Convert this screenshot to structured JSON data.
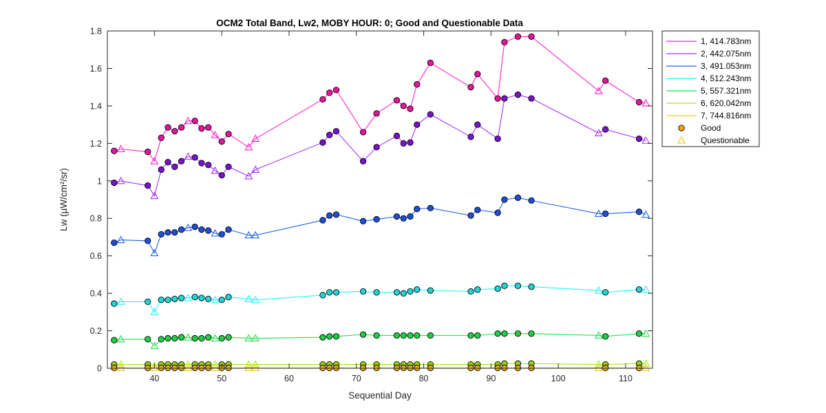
{
  "chart_data": {
    "type": "line",
    "title": "OCM2 Total Band,  Lw2, MOBY HOUR: 0;  Good and Questionable Data",
    "xlabel": "Sequential Day",
    "ylabel": "Lw (µW/cm²/sr)",
    "xlim": [
      33,
      114
    ],
    "ylim": [
      0,
      1.8
    ],
    "xticks": [
      40,
      50,
      60,
      70,
      80,
      90,
      100,
      110
    ],
    "yticks": [
      0,
      0.2,
      0.4,
      0.6,
      0.8,
      1,
      1.2,
      1.4,
      1.6,
      1.8
    ],
    "ytick_labels": [
      "0",
      "0.2",
      "0.4",
      "0.6",
      "0.8",
      "1",
      "1.2",
      "1.4",
      "1.6",
      "1.8"
    ],
    "grid": false,
    "legend_position": "outside-top-right",
    "x": [
      34,
      35,
      39,
      40,
      41,
      42,
      43,
      44,
      45,
      46,
      47,
      48,
      49,
      50,
      51,
      54,
      55,
      65,
      66,
      67,
      71,
      73,
      76,
      77,
      78,
      79,
      81,
      87,
      88,
      91,
      92,
      94,
      96,
      106,
      107,
      112,
      113
    ],
    "quality": [
      "g",
      "q",
      "g",
      "q",
      "g",
      "g",
      "g",
      "g",
      "q",
      "g",
      "g",
      "g",
      "q",
      "g",
      "g",
      "q",
      "q",
      "g",
      "g",
      "g",
      "g",
      "g",
      "g",
      "g",
      "g",
      "g",
      "g",
      "g",
      "g",
      "g",
      "g",
      "g",
      "g",
      "q",
      "g",
      "g",
      "q"
    ],
    "series": [
      {
        "name": "1, 414.783nm",
        "line_color": "#ff1fd2",
        "fill_color": "#e5159e",
        "values": [
          1.16,
          1.17,
          1.155,
          1.105,
          1.23,
          1.285,
          1.265,
          1.285,
          1.32,
          1.32,
          1.28,
          1.285,
          1.245,
          1.21,
          1.25,
          1.18,
          1.225,
          1.435,
          1.47,
          1.485,
          1.26,
          1.36,
          1.43,
          1.4,
          1.385,
          1.515,
          1.63,
          1.5,
          1.57,
          1.44,
          1.74,
          1.77,
          1.77,
          1.48,
          1.535,
          1.42,
          1.415
        ]
      },
      {
        "name": "2, 442.075nm",
        "line_color": "#a530ff",
        "fill_color": "#7a12cc",
        "values": [
          0.99,
          1.0,
          0.975,
          0.92,
          1.06,
          1.1,
          1.075,
          1.105,
          1.13,
          1.125,
          1.095,
          1.085,
          1.055,
          1.03,
          1.075,
          1.025,
          1.06,
          1.205,
          1.245,
          1.265,
          1.105,
          1.18,
          1.24,
          1.2,
          1.205,
          1.3,
          1.355,
          1.235,
          1.3,
          1.225,
          1.44,
          1.46,
          1.44,
          1.255,
          1.275,
          1.225,
          1.215
        ]
      },
      {
        "name": "3, 491.053nm",
        "line_color": "#2060e8",
        "fill_color": "#1f4fd6",
        "values": [
          0.67,
          0.685,
          0.68,
          0.615,
          0.715,
          0.725,
          0.725,
          0.74,
          0.75,
          0.755,
          0.74,
          0.735,
          0.72,
          0.715,
          0.74,
          0.71,
          0.71,
          0.79,
          0.815,
          0.82,
          0.785,
          0.795,
          0.81,
          0.8,
          0.81,
          0.85,
          0.855,
          0.815,
          0.845,
          0.83,
          0.9,
          0.91,
          0.895,
          0.825,
          0.825,
          0.835,
          0.82
        ]
      },
      {
        "name": "4, 512.243nm",
        "line_color": "#22f0ff",
        "fill_color": "#1fd6d6",
        "values": [
          0.345,
          0.355,
          0.355,
          0.3,
          0.365,
          0.365,
          0.37,
          0.375,
          0.375,
          0.38,
          0.375,
          0.37,
          0.365,
          0.365,
          0.38,
          0.37,
          0.365,
          0.39,
          0.405,
          0.405,
          0.41,
          0.405,
          0.405,
          0.4,
          0.41,
          0.42,
          0.415,
          0.41,
          0.42,
          0.425,
          0.44,
          0.44,
          0.435,
          0.415,
          0.405,
          0.42,
          0.42
        ]
      },
      {
        "name": "5, 557.321nm",
        "line_color": "#22e24a",
        "fill_color": "#1fcf44",
        "values": [
          0.15,
          0.155,
          0.155,
          0.12,
          0.155,
          0.16,
          0.16,
          0.165,
          0.165,
          0.16,
          0.16,
          0.165,
          0.16,
          0.16,
          0.165,
          0.16,
          0.16,
          0.165,
          0.17,
          0.17,
          0.18,
          0.175,
          0.175,
          0.175,
          0.175,
          0.175,
          0.175,
          0.175,
          0.175,
          0.185,
          0.185,
          0.185,
          0.185,
          0.175,
          0.17,
          0.185,
          0.185
        ]
      },
      {
        "name": "6, 620.042nm",
        "line_color": "#a6e81a",
        "fill_color": "#9ad21a",
        "values": [
          0.02,
          0.02,
          0.02,
          0.015,
          0.02,
          0.02,
          0.02,
          0.02,
          0.02,
          0.02,
          0.02,
          0.02,
          0.02,
          0.02,
          0.02,
          0.02,
          0.02,
          0.02,
          0.02,
          0.02,
          0.02,
          0.02,
          0.02,
          0.02,
          0.02,
          0.02,
          0.02,
          0.02,
          0.02,
          0.02,
          0.025,
          0.025,
          0.025,
          0.02,
          0.02,
          0.025,
          0.025
        ]
      },
      {
        "name": "7, 744.816nm",
        "line_color": "#f2c61e",
        "fill_color": "#e3ad14",
        "values": [
          0.002,
          0.002,
          0.002,
          0.002,
          0.002,
          0.002,
          0.002,
          0.002,
          0.002,
          0.002,
          0.002,
          0.002,
          0.002,
          0.002,
          0.002,
          0.002,
          0.002,
          0.002,
          0.002,
          0.002,
          0.002,
          0.002,
          0.002,
          0.002,
          0.002,
          0.002,
          0.002,
          0.002,
          0.002,
          0.002,
          0.002,
          0.002,
          0.002,
          0.002,
          0.002,
          0.002,
          0.002
        ]
      }
    ],
    "marker_legend": [
      {
        "label": "Good",
        "marker": "circle",
        "fill_color": "#f5a612"
      },
      {
        "label": "Questionable",
        "marker": "triangle",
        "stroke_color": "#f5c400"
      }
    ]
  }
}
